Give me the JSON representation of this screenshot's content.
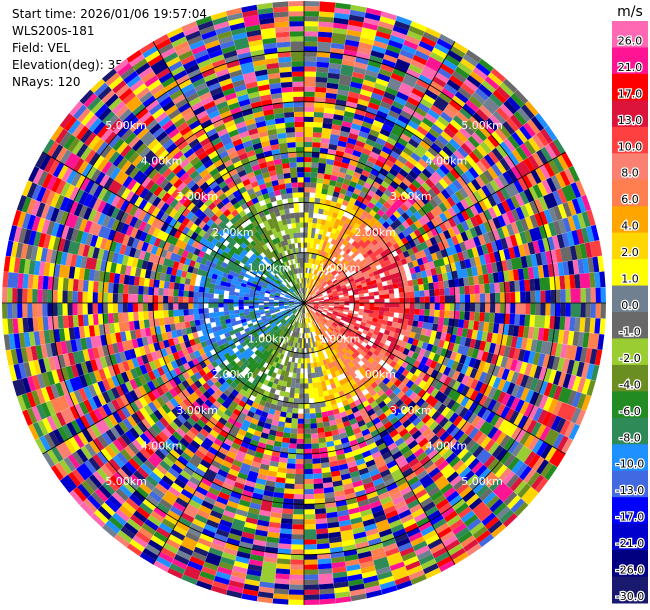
{
  "header": {
    "start_time": "Start time: 2026/01/06 19:57:04",
    "instrument": "WLS200s-181",
    "field": "Field: VEL",
    "elevation": "Elevation(deg): 35.00",
    "nrays": "NRays: 120"
  },
  "chart_data": {
    "type": "heatmap",
    "projection": "polar-ppi",
    "nrays": 120,
    "max_range_km": 6.0,
    "range_rings_km": [
      1.0,
      2.0,
      3.0,
      4.0,
      5.0
    ],
    "ring_labels": [
      "1.00km",
      "2.00km",
      "3.00km",
      "4.00km",
      "5.00km"
    ],
    "colorbar": {
      "unit": "m/s",
      "ticks": [
        "26.0",
        "21.0",
        "17.0",
        "13.0",
        "10.0",
        "8.0",
        "6.0",
        "4.0",
        "2.0",
        "1.0",
        "0.0",
        "-1.0",
        "-2.0",
        "-4.0",
        "-6.0",
        "-8.0",
        "-10.0",
        "-13.0",
        "-17.0",
        "-21.0",
        "-26.0",
        "-30.0"
      ],
      "colors": [
        "#ff69b4",
        "#ff1493",
        "#ff0000",
        "#dc143c",
        "#ff4040",
        "#fa8072",
        "#ff7f50",
        "#ffa500",
        "#ffd700",
        "#ffff00",
        "#708090",
        "#696969",
        "#9acd32",
        "#6b8e23",
        "#228b22",
        "#2e8b57",
        "#1e90ff",
        "#4169e1",
        "#0000ff",
        "#0000cd",
        "#000080",
        "#191970"
      ]
    }
  }
}
